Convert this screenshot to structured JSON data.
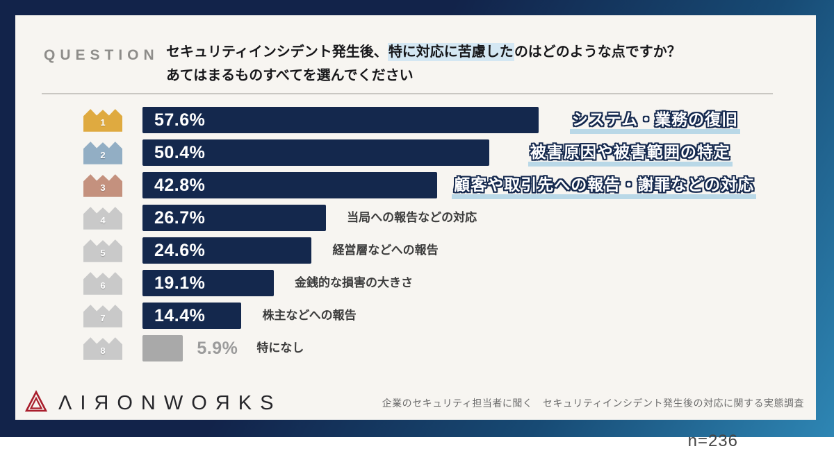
{
  "header": {
    "question_label": "QUESTION",
    "question_line1_pre": "セキュリティインシデント発生後、",
    "question_line1_highlight": "特に対応に苦慮した",
    "question_line1_post": "のはどのような点ですか？",
    "question_line2": "あてはまるものすべてを選んでください"
  },
  "chart_data": {
    "type": "bar",
    "orientation": "horizontal",
    "unit": "%",
    "xlim": [
      0,
      63
    ],
    "grid": false,
    "sample_size_label": "n=236",
    "categories": [
      "システム・業務の復旧",
      "被害原因や被害範囲の特定",
      "顧客や取引先への報告・謝罪などの対応",
      "当局への報告などの対応",
      "経営層などへの報告",
      "金銭的な損害の大きさ",
      "株主などへの報告",
      "特になし"
    ],
    "values": [
      57.6,
      50.4,
      42.8,
      26.7,
      24.6,
      19.1,
      14.4,
      5.9
    ],
    "series": [
      {
        "rank": "1",
        "value": 57.6,
        "value_label": "57.6%",
        "label": "システム・業務の復旧",
        "highlighted": true,
        "crown_color": "#dfaa40",
        "bar_color": "#14284d"
      },
      {
        "rank": "2",
        "value": 50.4,
        "value_label": "50.4%",
        "label": "被害原因や被害範囲の特定",
        "highlighted": true,
        "crown_color": "#92aec4",
        "bar_color": "#14284d"
      },
      {
        "rank": "3",
        "value": 42.8,
        "value_label": "42.8%",
        "label": "顧客や取引先への報告・謝罪などの対応",
        "highlighted": true,
        "crown_color": "#c4917e",
        "bar_color": "#14284d"
      },
      {
        "rank": "4",
        "value": 26.7,
        "value_label": "26.7%",
        "label": "当局への報告などの対応",
        "highlighted": false,
        "crown_color": "#c9c9c9",
        "bar_color": "#14284d"
      },
      {
        "rank": "5",
        "value": 24.6,
        "value_label": "24.6%",
        "label": "経営層などへの報告",
        "highlighted": false,
        "crown_color": "#c9c9c9",
        "bar_color": "#14284d"
      },
      {
        "rank": "6",
        "value": 19.1,
        "value_label": "19.1%",
        "label": "金銭的な損害の大きさ",
        "highlighted": false,
        "crown_color": "#c9c9c9",
        "bar_color": "#14284d"
      },
      {
        "rank": "7",
        "value": 14.4,
        "value_label": "14.4%",
        "label": "株主などへの報告",
        "highlighted": false,
        "crown_color": "#c9c9c9",
        "bar_color": "#14284d"
      },
      {
        "rank": "8",
        "value": 5.9,
        "value_label": "5.9%",
        "label": "特になし",
        "highlighted": false,
        "muted": true,
        "crown_color": "#c9c9c9",
        "bar_color": "#a9a9a9"
      }
    ]
  },
  "colors": {
    "frame_gradient_start": "#12234a",
    "frame_gradient_end": "#2e86b4",
    "card_bg": "#f7f5f1",
    "bar_navy": "#14284d",
    "bar_muted": "#a9a9a9",
    "highlight_underline": "#b9d8e7",
    "question_highlight_bg": "#d4e7f3",
    "crown_gold": "#dfaa40",
    "crown_silver": "#92aec4",
    "crown_bronze": "#c4917e",
    "crown_gray": "#c9c9c9"
  },
  "footer": {
    "brand": "ΛIЯONWOЯKS",
    "caption": "企業のセキュリティ担当者に聞く　セキュリティインシデント発生後の対応に関する実態調査"
  }
}
